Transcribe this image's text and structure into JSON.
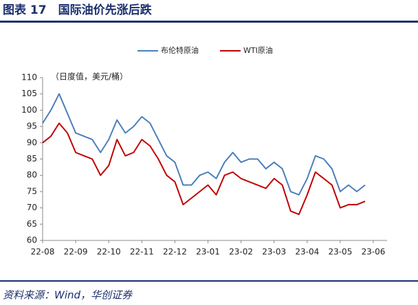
{
  "chart_data": {
    "type": "line",
    "title": "图表 17　国际油价先涨后跌",
    "y_unit": "（日度值，美元/桶）",
    "source": "资料来源：Wind，华创证券",
    "categories": [
      "22-08",
      null,
      null,
      null,
      "22-09",
      null,
      null,
      null,
      "22-10",
      null,
      null,
      null,
      "22-11",
      null,
      null,
      null,
      "22-12",
      null,
      null,
      null,
      "23-01",
      null,
      null,
      null,
      "23-02",
      null,
      null,
      null,
      "23-03",
      null,
      null,
      null,
      "23-04",
      null,
      null,
      null,
      "23-05",
      null,
      null,
      null,
      "23-06"
    ],
    "series": [
      {
        "name": "布伦特原油",
        "color": "#4a7ebb",
        "values": [
          96,
          100,
          105,
          99,
          93,
          92,
          91,
          87,
          91,
          97,
          93,
          95,
          98,
          96,
          91,
          86,
          84,
          77,
          77,
          80,
          81,
          79,
          84,
          87,
          84,
          85,
          85,
          82,
          84,
          82,
          75,
          74,
          79,
          86,
          85,
          82,
          75,
          77,
          75,
          77,
          null
        ]
      },
      {
        "name": "WTI原油",
        "color": "#c00000",
        "values": [
          90,
          92,
          96,
          93,
          87,
          86,
          85,
          80,
          83,
          91,
          86,
          87,
          91,
          89,
          85,
          80,
          78,
          71,
          73,
          75,
          77,
          74,
          80,
          81,
          79,
          78,
          77,
          76,
          79,
          77,
          69,
          68,
          74,
          81,
          79,
          77,
          70,
          71,
          71,
          72,
          null
        ]
      }
    ],
    "ylim": [
      60,
      110
    ],
    "yticks": [
      60,
      65,
      70,
      75,
      80,
      85,
      90,
      95,
      100,
      105,
      110
    ],
    "legend": "top"
  }
}
